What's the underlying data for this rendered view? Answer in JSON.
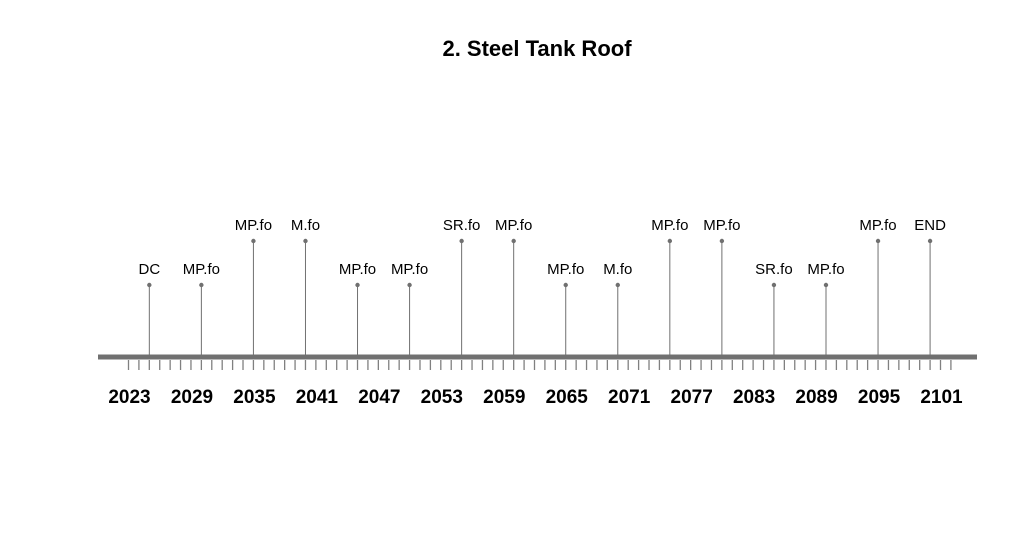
{
  "chart_data": {
    "type": "timeline",
    "title": "2. Steel Tank Roof",
    "xlim": [
      2021,
      2104
    ],
    "minor_tick_step": 1,
    "tick_labels": [
      "2023",
      "2029",
      "2035",
      "2041",
      "2047",
      "2053",
      "2059",
      "2065",
      "2071",
      "2077",
      "2083",
      "2089",
      "2095",
      "2101"
    ],
    "events": [
      {
        "year": 2025,
        "label": "DC",
        "level": 1
      },
      {
        "year": 2030,
        "label": "MP.fo",
        "level": 1
      },
      {
        "year": 2035,
        "label": "MP.fo",
        "level": 2
      },
      {
        "year": 2040,
        "label": "M.fo",
        "level": 2
      },
      {
        "year": 2045,
        "label": "MP.fo",
        "level": 1
      },
      {
        "year": 2050,
        "label": "MP.fo",
        "level": 1
      },
      {
        "year": 2055,
        "label": "SR.fo",
        "level": 2
      },
      {
        "year": 2060,
        "label": "MP.fo",
        "level": 2
      },
      {
        "year": 2065,
        "label": "MP.fo",
        "level": 1
      },
      {
        "year": 2070,
        "label": "M.fo",
        "level": 1
      },
      {
        "year": 2075,
        "label": "MP.fo",
        "level": 2
      },
      {
        "year": 2080,
        "label": "MP.fo",
        "level": 2
      },
      {
        "year": 2085,
        "label": "SR.fo",
        "level": 1
      },
      {
        "year": 2090,
        "label": "MP.fo",
        "level": 1
      },
      {
        "year": 2095,
        "label": "MP.fo",
        "level": 2
      },
      {
        "year": 2100,
        "label": "END",
        "level": 2
      }
    ],
    "colors": {
      "axis": "#707070",
      "stem": "#707070",
      "tick": "#808080",
      "text": "#000000"
    }
  }
}
